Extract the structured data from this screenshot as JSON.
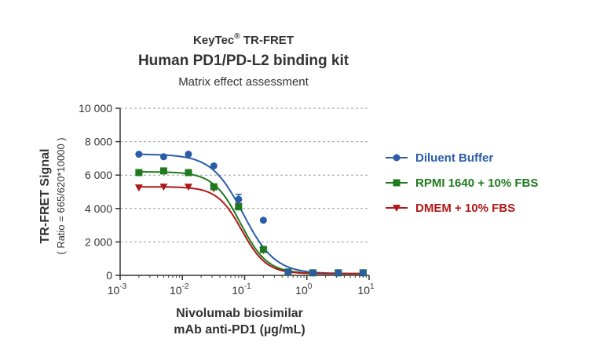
{
  "chart_data": {
    "type": "scatter",
    "brand": "KeyTec",
    "brand_mark": "®",
    "brand_suffix": " TR-FRET",
    "title": "Human PD1/PD-L2 binding kit",
    "subtitle": "Matrix effect assessment",
    "ylabel": "TR-FRET Signal",
    "ylabel_sub": "( Ratio = 665/620*10000 )",
    "xlabel_line1": "Nivolumab biosimilar",
    "xlabel_line2": "mAb anti-PD1  (µg/mL)",
    "x_scale": "log",
    "xlim": [
      0.001,
      10
    ],
    "ylim": [
      0,
      10000
    ],
    "y_ticks": [
      0,
      2000,
      4000,
      6000,
      8000,
      10000
    ],
    "y_tick_labels": [
      "0",
      "2 000",
      "4 000",
      "6 000",
      "8 000",
      "10 000"
    ],
    "x_ticks": [
      0.001,
      0.01,
      0.1,
      1,
      10
    ],
    "x_tick_labels": [
      {
        "base": "10",
        "exp": "-3"
      },
      {
        "base": "10",
        "exp": "-2"
      },
      {
        "base": "10",
        "exp": "-1"
      },
      {
        "base": "10",
        "exp": "0"
      },
      {
        "base": "10",
        "exp": "1"
      }
    ],
    "grid": "horizontal dashed",
    "legend_position": "right",
    "x": [
      0.002,
      0.005,
      0.0125,
      0.032,
      0.08,
      0.2,
      0.5,
      1.25,
      3.2,
      8
    ],
    "series": [
      {
        "name": "Diluent Buffer",
        "color": "#2a5ca8",
        "marker": "circle",
        "values": [
          7250,
          7100,
          7250,
          6550,
          4550,
          3300,
          200,
          150,
          150,
          150
        ],
        "error": [
          0,
          0,
          0,
          0,
          300,
          0,
          0,
          0,
          0,
          0
        ],
        "fit": {
          "top": 7250,
          "bottom": 100,
          "ec50": 0.095,
          "hill": 1.7
        }
      },
      {
        "name": "RPMI 1640 + 10% FBS",
        "color": "#1e7a1e",
        "marker": "square",
        "values": [
          6150,
          6250,
          6150,
          5300,
          4100,
          1550,
          200,
          150,
          150,
          150
        ],
        "error": [
          0,
          0,
          0,
          0,
          0,
          0,
          0,
          0,
          0,
          0
        ],
        "fit": {
          "top": 6200,
          "bottom": 100,
          "ec50": 0.085,
          "hill": 2.0
        }
      },
      {
        "name": "DMEM + 10% FBS",
        "color": "#b01818",
        "marker": "triangle-down",
        "values": [
          5250,
          5300,
          5300,
          5200,
          4150,
          1500,
          180,
          150,
          150,
          150
        ],
        "error": [
          0,
          0,
          0,
          0,
          0,
          0,
          0,
          0,
          0,
          0
        ],
        "fit": {
          "top": 5300,
          "bottom": 100,
          "ec50": 0.09,
          "hill": 2.2
        }
      }
    ]
  }
}
